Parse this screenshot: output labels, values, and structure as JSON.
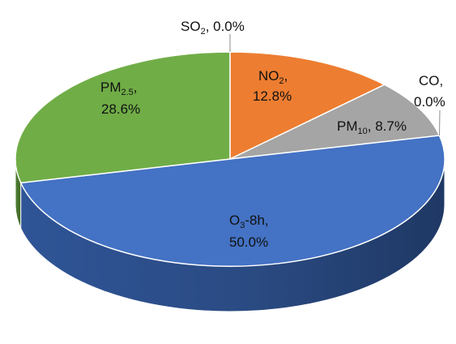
{
  "chart_data": {
    "type": "pie",
    "style": "3d-pie",
    "categories": [
      "SO2",
      "NO2",
      "PM10",
      "CO",
      "O3-8h",
      "PM2.5"
    ],
    "values": [
      0.0,
      12.8,
      8.7,
      0.0,
      50.0,
      28.6
    ],
    "unit": "%",
    "colors": {
      "NO2": "#ED7D31",
      "PM10": "#A5A5A5",
      "O3-8h": "#4472C4",
      "PM2.5": "#70AD47"
    },
    "labels": {
      "so2": {
        "name": "SO",
        "sub": "2",
        "value": ", 0.0%"
      },
      "no2": {
        "name": "NO",
        "sub": "2",
        "value_prefix": ",",
        "value": "12.8%"
      },
      "pm10": {
        "name": "PM",
        "sub": "10",
        "value": ", 8.7%"
      },
      "co": {
        "name": "CO,",
        "value": "0.0%"
      },
      "o3": {
        "name": "O",
        "sub": "3",
        "tail": "-8h,",
        "value": "50.0%"
      },
      "pm25": {
        "name": "PM",
        "sub": "2.5",
        "value_prefix": ",",
        "value": "28.6%"
      }
    },
    "title": "",
    "legend": "none"
  }
}
